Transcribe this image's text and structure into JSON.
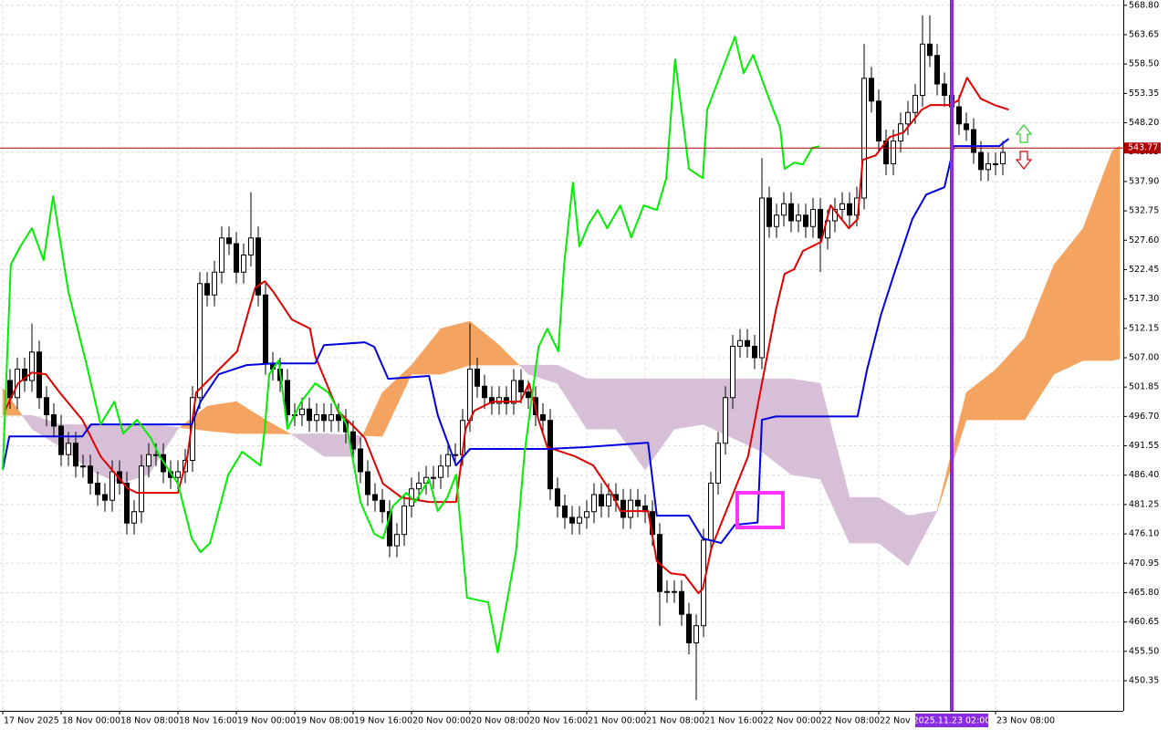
{
  "chart_data": {
    "type": "candlestick",
    "xlim": [
      -0.375,
      153.5
    ],
    "ylim": [
      445.07,
      569.73
    ],
    "grid": true,
    "xticks": [
      {
        "value": 0,
        "label": "17 Nov 2025"
      },
      {
        "value": 8,
        "label": "18 Nov 00:00"
      },
      {
        "value": 16,
        "label": "18 Nov 08:00"
      },
      {
        "value": 24,
        "label": "18 Nov 16:00"
      },
      {
        "value": 32,
        "label": "19 Nov 00:00"
      },
      {
        "value": 40,
        "label": "19 Nov 08:00"
      },
      {
        "value": 48,
        "label": "19 Nov 16:00"
      },
      {
        "value": 56,
        "label": "20 Nov 00:00"
      },
      {
        "value": 64,
        "label": "20 Nov 08:00"
      },
      {
        "value": 72,
        "label": "20 Nov 16:00"
      },
      {
        "value": 80,
        "label": "21 Nov 00:00"
      },
      {
        "value": 88,
        "label": "21 Nov 08:00"
      },
      {
        "value": 96,
        "label": "21 Nov 16:00"
      },
      {
        "value": 104,
        "label": "22 Nov 00:00"
      },
      {
        "value": 112,
        "label": "22 Nov 08:00"
      },
      {
        "value": 120,
        "label": "22 Nov 16:00"
      },
      {
        "value": 136,
        "label": "23 Nov 08:00"
      }
    ],
    "yticks": [
      {
        "value": 568.8,
        "label": "568.80"
      },
      563.65,
      {
        "value": 558.5,
        "label": "558.50"
      },
      553.35,
      {
        "value": 548.2,
        "label": "548.20"
      },
      543.05,
      {
        "value": 537.9,
        "label": "537.90"
      },
      532.75,
      {
        "value": 527.6,
        "label": "527.60"
      },
      522.45,
      {
        "value": 517.3,
        "label": "517.30"
      },
      512.15,
      {
        "value": 507,
        "label": "507.00"
      },
      501.85,
      {
        "value": 496.7,
        "label": "496.70"
      },
      491.55,
      {
        "value": 486.4,
        "label": "486.40"
      },
      481.25,
      {
        "value": 476.1,
        "label": "476.10"
      },
      470.95,
      {
        "value": 465.8,
        "label": "465.80"
      },
      460.65,
      {
        "value": 455.5,
        "label": "455.50"
      },
      450.35
    ],
    "x": [
      1,
      2,
      3,
      4,
      5,
      6,
      7,
      8,
      9,
      10,
      11,
      12,
      13,
      14,
      15,
      16,
      17,
      18,
      19,
      20,
      21,
      22,
      23,
      24,
      25,
      26,
      27,
      28,
      29,
      30,
      31,
      32,
      33,
      34,
      35,
      36,
      37,
      38,
      39,
      40,
      41,
      42,
      43,
      44,
      45,
      46,
      47,
      48,
      49,
      50,
      51,
      52,
      53,
      54,
      55,
      56,
      57,
      58,
      59,
      60,
      61,
      62,
      63,
      64,
      65,
      66,
      67,
      68,
      69,
      70,
      71,
      72,
      73,
      74,
      75,
      76,
      77,
      78,
      79,
      80,
      81,
      82,
      83,
      84,
      85,
      86,
      87,
      88,
      89,
      90,
      91,
      92,
      93,
      94,
      95,
      96,
      97,
      98,
      99,
      100,
      101,
      102,
      103,
      104,
      105,
      106,
      107,
      108,
      109,
      110,
      111,
      112,
      113,
      114,
      115,
      116,
      117,
      118,
      119,
      120,
      121,
      122,
      123,
      124,
      125,
      126,
      127,
      128,
      129,
      130,
      131,
      132,
      133,
      134,
      135,
      136,
      137
    ],
    "open": [
      503,
      500,
      505,
      503,
      508,
      500,
      497,
      495,
      490,
      492,
      488,
      488,
      485,
      483,
      482,
      487,
      485,
      478,
      480,
      488,
      490,
      490,
      487,
      486,
      487,
      489,
      500,
      520,
      518,
      522,
      528,
      527,
      522,
      525,
      528,
      518,
      506,
      505,
      503,
      497,
      497,
      498,
      496,
      497,
      496,
      497,
      496,
      494,
      491,
      487,
      483,
      482,
      480,
      474,
      476,
      481,
      484,
      485,
      486,
      486,
      488,
      490,
      490,
      496,
      505,
      502,
      500,
      499,
      500,
      499,
      503,
      501,
      500,
      497,
      496,
      484,
      481,
      479,
      478,
      479,
      480,
      483,
      481,
      483,
      482,
      479,
      482,
      481,
      480,
      476,
      466,
      466,
      466,
      462,
      457,
      460,
      475,
      485,
      492,
      500,
      509,
      510,
      509,
      507,
      535,
      530,
      532,
      534,
      531,
      532,
      530,
      533,
      528,
      531,
      533,
      534,
      532,
      535,
      556,
      552,
      545,
      541,
      545,
      548,
      550,
      553,
      562,
      560,
      555,
      553,
      551,
      548,
      547,
      543,
      540,
      541,
      541
    ],
    "high": [
      505,
      507,
      507,
      513,
      510,
      502,
      499,
      497,
      494,
      494,
      490,
      490,
      487,
      485,
      489,
      489,
      487,
      482,
      490,
      492,
      492,
      492,
      489,
      489,
      491,
      502,
      522,
      522,
      524,
      530,
      530,
      529,
      527,
      536,
      530,
      520,
      508,
      507,
      505,
      499,
      500,
      500,
      499,
      499,
      499,
      499,
      498,
      496,
      493,
      489,
      485,
      484,
      482,
      478,
      483,
      486,
      487,
      488,
      488,
      490,
      492,
      492,
      498,
      513,
      507,
      504,
      502,
      502,
      502,
      505,
      505,
      503,
      502,
      499,
      498,
      486,
      483,
      481,
      481,
      482,
      485,
      485,
      485,
      485,
      484,
      484,
      484,
      483,
      482,
      478,
      468,
      468,
      468,
      464,
      462,
      477,
      487,
      494,
      502,
      511,
      512,
      512,
      511,
      542,
      537,
      534,
      536,
      536,
      534,
      534,
      535,
      535,
      533,
      535,
      536,
      536,
      537,
      562,
      558,
      554,
      547,
      547,
      550,
      552,
      555,
      567,
      567,
      562,
      557,
      555,
      553,
      550,
      549,
      545,
      543,
      543,
      545
    ],
    "low": [
      498,
      498,
      501,
      501,
      498,
      495,
      493,
      488,
      488,
      486,
      486,
      483,
      481,
      480,
      480,
      483,
      476,
      476,
      478,
      486,
      488,
      485,
      484,
      484,
      485,
      487,
      498,
      516,
      516,
      520,
      525,
      520,
      520,
      523,
      516,
      504,
      503,
      501,
      495,
      495,
      495,
      494,
      494,
      494,
      494,
      494,
      492,
      489,
      485,
      481,
      480,
      478,
      472,
      472,
      474,
      479,
      482,
      483,
      484,
      484,
      486,
      488,
      488,
      494,
      500,
      498,
      497,
      497,
      497,
      497,
      499,
      498,
      495,
      494,
      482,
      479,
      477,
      476,
      476,
      477,
      478,
      479,
      479,
      480,
      477,
      477,
      479,
      478,
      474,
      460,
      464,
      464,
      460,
      455,
      447,
      458,
      473,
      483,
      490,
      498,
      507,
      507,
      505,
      505,
      528,
      528,
      530,
      529,
      529,
      528,
      528,
      522,
      526,
      529,
      531,
      530,
      530,
      533,
      550,
      543,
      539,
      539,
      543,
      546,
      548,
      551,
      558,
      553,
      551,
      549,
      546,
      545,
      541,
      538,
      538,
      539,
      539
    ],
    "close": [
      500,
      505,
      503,
      508,
      500,
      497,
      495,
      490,
      492,
      488,
      488,
      485,
      483,
      482,
      487,
      485,
      478,
      480,
      488,
      490,
      490,
      487,
      486,
      487,
      489,
      500,
      520,
      518,
      522,
      528,
      527,
      522,
      525,
      528,
      518,
      506,
      505,
      503,
      497,
      497,
      498,
      496,
      497,
      496,
      497,
      496,
      494,
      491,
      487,
      483,
      482,
      480,
      474,
      476,
      481,
      484,
      485,
      486,
      486,
      488,
      490,
      490,
      496,
      505,
      502,
      500,
      499,
      500,
      499,
      503,
      501,
      500,
      497,
      496,
      484,
      481,
      479,
      478,
      479,
      480,
      483,
      481,
      483,
      482,
      479,
      482,
      481,
      480,
      476,
      466,
      466,
      466,
      462,
      457,
      460,
      475,
      485,
      492,
      500,
      509,
      510,
      509,
      507,
      535,
      530,
      532,
      534,
      531,
      532,
      530,
      533,
      528,
      531,
      533,
      534,
      532,
      535,
      556,
      552,
      545,
      541,
      545,
      548,
      550,
      553,
      562,
      560,
      555,
      553,
      551,
      548,
      547,
      543,
      540,
      541,
      541,
      543
    ],
    "up_color": "#ffffff",
    "down_color": "#000000",
    "outline_color": "#000000",
    "cloud": {
      "x": [
        0,
        4,
        8,
        12,
        16,
        20,
        24,
        28,
        32,
        36,
        40,
        44,
        48,
        52,
        56,
        60,
        64,
        68,
        72,
        76,
        80,
        84,
        88,
        92,
        96,
        100,
        104,
        108,
        112,
        116,
        120,
        124,
        128,
        132,
        136,
        140,
        144,
        148,
        152,
        153
      ],
      "span_a": [
        501.7,
        494.5,
        491.3,
        487.3,
        484.9,
        486.5,
        494.5,
        498.5,
        499.3,
        496.1,
        493.2,
        489.7,
        489.7,
        500.9,
        505.7,
        512.1,
        513.4,
        509.2,
        504.1,
        502.5,
        494.5,
        494.5,
        487.3,
        494.5,
        495.3,
        492.9,
        490.5,
        486.5,
        485.7,
        474.5,
        474.5,
        470.5,
        480.1,
        500.9,
        504.9,
        510.5,
        523.3,
        529.7,
        543.3,
        544.1
      ],
      "span_b": [
        496.9,
        496.9,
        495.3,
        495.3,
        495.3,
        495.3,
        494.8,
        494.2,
        493.7,
        493.7,
        493.6,
        493.7,
        493.4,
        493.2,
        504.1,
        504.1,
        505.7,
        505.7,
        505.7,
        505.7,
        503.3,
        503.3,
        503.3,
        503.3,
        503.3,
        503.3,
        503.3,
        503.3,
        502.5,
        482.5,
        482.5,
        479.3,
        480.1,
        496.1,
        496.1,
        496.1,
        504.1,
        506.5,
        506.5,
        506.8
      ],
      "bull_color": "#f4a460",
      "bear_color": "#d8bfd8"
    },
    "lines": [
      {
        "color": "#e00000",
        "x": [
          0.3,
          2.1,
          4,
          5.9,
          7.8,
          10.9,
          13.4,
          17.1,
          18.4,
          24,
          25.3,
          26.5,
          29.6,
          32.1,
          34.6,
          35.9,
          37.1,
          39.6,
          42.1,
          42.8,
          45.9,
          47.8,
          49.6,
          52.1,
          54.6,
          58.4,
          62.1,
          63.4,
          64.6,
          67.1,
          70.9,
          72.1,
          73.4,
          74.6,
          78.4,
          80.9,
          83.4,
          84.6,
          88.4,
          89.6,
          91.5,
          93.4,
          95.3,
          95.9,
          97.1,
          99.6,
          102.1,
          104,
          105.9,
          107.1,
          108.4,
          109.6,
          112.1,
          113.4,
          115.9,
          117.1,
          117.8,
          119.6,
          121.5,
          123.4,
          125.9,
          127.1,
          129.6,
          130.9,
          132.1,
          134,
          135.9,
          137.8
        ],
        "values": [
          497.7,
          502.5,
          504.4,
          504.1,
          500.9,
          496.1,
          489.7,
          484.1,
          483.3,
          483.3,
          489.7,
          500.9,
          504.9,
          508.1,
          519.3,
          520.4,
          518.5,
          513.7,
          512.1,
          507.3,
          497.7,
          495.3,
          492.9,
          484.9,
          482.5,
          481.7,
          481.7,
          494.5,
          497.7,
          499.3,
          499.3,
          502.5,
          496.1,
          491.3,
          489.7,
          488.1,
          483.3,
          480.1,
          480.1,
          471.3,
          469.2,
          468.9,
          465.7,
          466.5,
          473.7,
          481.7,
          489.7,
          502.5,
          515.3,
          521.7,
          522.5,
          525.7,
          527.3,
          533.7,
          529.7,
          531.3,
          541.7,
          542.5,
          545.7,
          546.5,
          550.5,
          551.3,
          551.3,
          552.1,
          556.1,
          552.4,
          551.3,
          550.5
        ]
      },
      {
        "color": "#0000e0",
        "x": [
          0,
          0.9,
          10.9,
          12.1,
          25.9,
          27.1,
          29.6,
          33.4,
          37.1,
          42.8,
          44,
          49.6,
          50.9,
          52.8,
          58.4,
          59.6,
          62.1,
          64,
          74.6,
          79.6,
          88.4,
          89.6,
          94,
          95.9,
          98.4,
          100.3,
          103.4,
          104,
          105.9,
          117.1,
          118.4,
          120.3,
          122.1,
          124.6,
          126.5,
          129,
          130.3,
          136.5,
          137.8
        ],
        "values": [
          487.3,
          493.2,
          493.2,
          495.3,
          495.3,
          499.3,
          504.1,
          505.7,
          506,
          506,
          509.2,
          509.7,
          508.9,
          503.3,
          503.8,
          496.9,
          488.1,
          491,
          491,
          491.3,
          492.1,
          479.3,
          479.3,
          475.3,
          474.5,
          477.7,
          478.1,
          496.1,
          496.7,
          496.7,
          504.9,
          514.5,
          521.7,
          531.3,
          535.6,
          536.9,
          544.1,
          544.1,
          545.4
        ]
      },
      {
        "color": "#00ee00",
        "x": [
          0,
          1.1,
          2.4,
          4,
          5.6,
          6.9,
          9,
          11.5,
          13.4,
          15.3,
          16.5,
          18.4,
          20.3,
          21.5,
          24,
          25.9,
          27.1,
          28.4,
          30.9,
          32.8,
          35.3,
          35.9,
          36.5,
          37.8,
          39,
          40.9,
          42.8,
          44.6,
          47.1,
          49,
          50.9,
          52.1,
          53.4,
          55.3,
          56.5,
          58.4,
          59.6,
          60.9,
          62.1,
          63.6,
          66.5,
          67.8,
          70.3,
          71.5,
          73.4,
          74.6,
          76.1,
          76.9,
          78.1,
          79,
          80.3,
          81.5,
          82.8,
          84.6,
          86.1,
          87.8,
          89.6,
          90.9,
          92.1,
          94,
          95.9,
          96.5,
          98.4,
          100.3,
          101.5,
          102.8,
          104.6,
          106.5,
          107.1,
          108.4,
          109.6,
          110.9,
          111.9
        ],
        "values": [
          487.3,
          523.3,
          526.5,
          529.7,
          524.1,
          535.3,
          518.5,
          505.7,
          495.3,
          499.3,
          493.7,
          496.1,
          492.9,
          489.7,
          484.9,
          475.3,
          472.9,
          474.5,
          486.5,
          490.5,
          488.1,
          494.5,
          504.1,
          506.5,
          494.5,
          499.3,
          502.5,
          500.9,
          495.3,
          481.7,
          476.1,
          475.3,
          480.9,
          483.3,
          481.7,
          485.7,
          480.1,
          482.5,
          486.5,
          464.9,
          464.1,
          455.3,
          472.9,
          490.5,
          508.9,
          512.1,
          508.1,
          523.3,
          537.7,
          526.5,
          530.5,
          532.9,
          529.7,
          533.7,
          528.1,
          533.7,
          532.9,
          538.5,
          559.3,
          540.1,
          538.5,
          550.5,
          556.9,
          563.3,
          556.9,
          560.1,
          553.7,
          547.3,
          540.1,
          541.2,
          540.9,
          543.8,
          544.1
        ]
      }
    ],
    "price_line": {
      "value": 543.77,
      "color": "#b00000"
    },
    "crosshair": {
      "x": {
        "value": 130,
        "label": "2025.11.23 02:00"
      },
      "color": "#8a2be2"
    }
  }
}
